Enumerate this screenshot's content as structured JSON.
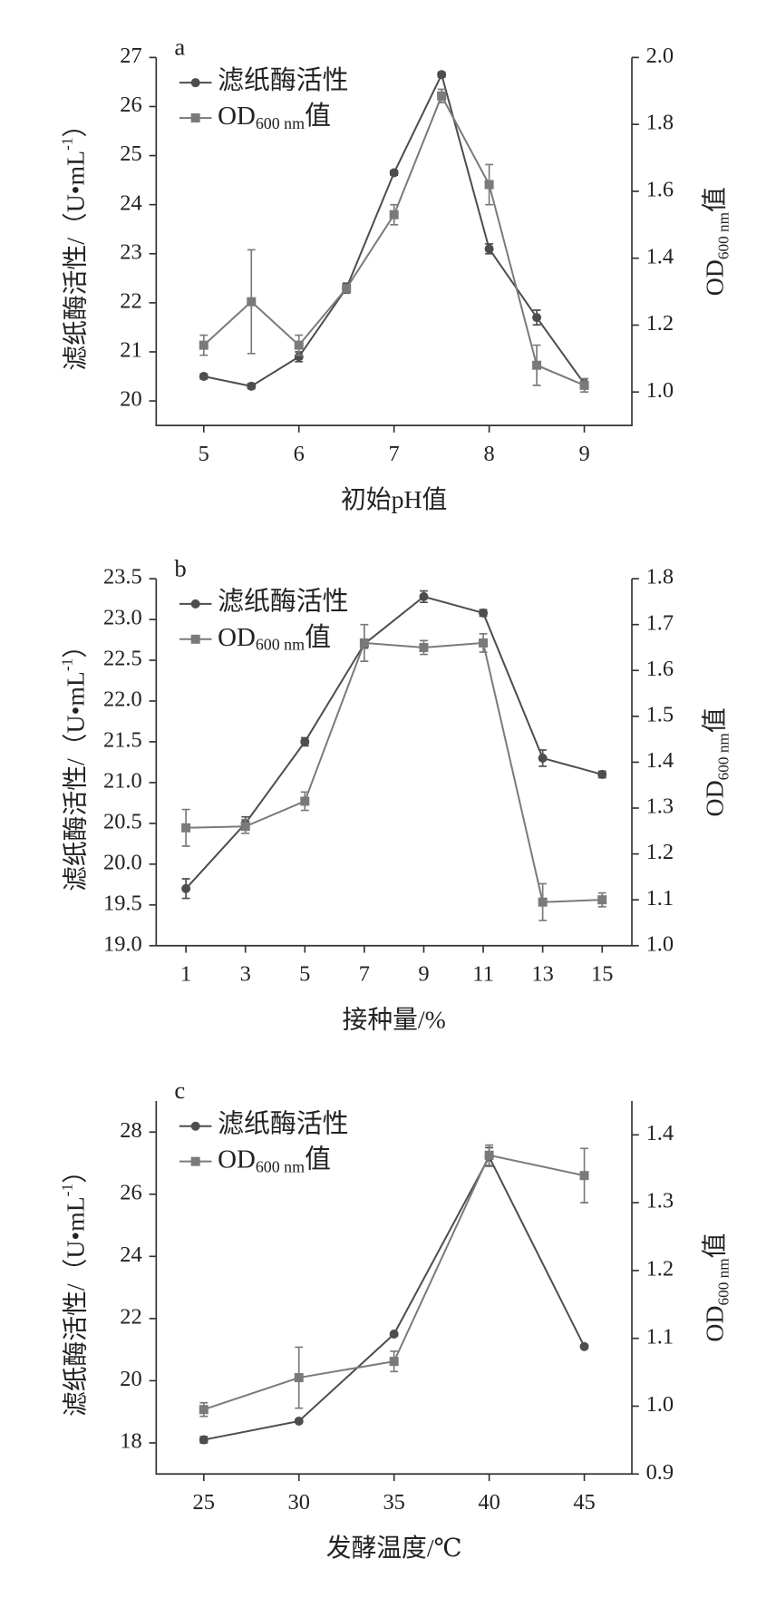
{
  "chart_data": [
    {
      "type": "line",
      "panel": "a",
      "x_label": "初始pH值",
      "y_label": {
        "main": "滤纸酶活性/（U•mL",
        "sup": "-1",
        "suffix": "）"
      },
      "y2_label": {
        "main": "OD",
        "sub": "600 nm",
        "suffix": "值"
      },
      "x": [
        5,
        5.5,
        6,
        6.5,
        7,
        7.5,
        8,
        8.5,
        9
      ],
      "xlim": [
        4.5,
        9.5
      ],
      "xticks": [
        5,
        6,
        7,
        8,
        9
      ],
      "ylim": [
        19.5,
        27
      ],
      "yticks": [
        20,
        21,
        22,
        23,
        24,
        25,
        26,
        27
      ],
      "y2lim": [
        0.9,
        2.0
      ],
      "y2ticks": [
        {
          "value": 1.0,
          "label": "1.0"
        },
        1.2,
        1.4,
        1.6,
        1.8,
        {
          "value": 2.0,
          "label": "2.0"
        }
      ],
      "series": [
        {
          "name": "滤纸酶活性",
          "color": "#4d4d4d",
          "marker": "circle",
          "values": [
            20.5,
            20.3,
            20.9,
            22.3,
            24.65,
            26.65,
            23.1,
            21.7,
            20.35
          ],
          "errors": [
            0.05,
            0.05,
            0.1,
            0.1,
            0.05,
            0.05,
            0.1,
            0.15,
            0.1
          ]
        },
        {
          "name": {
            "main": "OD",
            "sub": "600 nm",
            "suffix": "值"
          },
          "color": "#7a7a7a",
          "marker": "square",
          "axis": "y2",
          "values": [
            1.14,
            1.27,
            1.14,
            1.31,
            1.53,
            1.885,
            1.62,
            1.08,
            1.02
          ],
          "errors": [
            0.03,
            0.155,
            0.03,
            0.01,
            0.03,
            0.02,
            0.06,
            0.06,
            0.02
          ]
        }
      ]
    },
    {
      "type": "line",
      "panel": "b",
      "x_label": "接种量/%",
      "y_label": {
        "main": "滤纸酶活性/（U•mL",
        "sup": "-1",
        "suffix": "）"
      },
      "y2_label": {
        "main": "OD",
        "sub": "600 nm",
        "suffix": "值"
      },
      "x": [
        1,
        3,
        5,
        7,
        9,
        11,
        13,
        15
      ],
      "xlim": [
        0,
        16
      ],
      "xticks": [
        1,
        3,
        5,
        7,
        9,
        11,
        13,
        15
      ],
      "ylim": [
        19,
        23.5
      ],
      "yticks": [
        {
          "value": 19,
          "label": "19.0"
        },
        19.5,
        {
          "value": 20,
          "label": "20.0"
        },
        20.5,
        {
          "value": 21,
          "label": "21.0"
        },
        21.5,
        {
          "value": 22,
          "label": "22.0"
        },
        22.5,
        {
          "value": 23,
          "label": "23.0"
        },
        23.5
      ],
      "y2lim": [
        1.0,
        1.8
      ],
      "y2ticks": [
        {
          "value": 1.0,
          "label": "1.0"
        },
        1.1,
        1.2,
        1.3,
        1.4,
        1.5,
        1.6,
        1.7,
        1.8
      ],
      "series": [
        {
          "name": "滤纸酶活性",
          "color": "#4d4d4d",
          "marker": "circle",
          "values": [
            19.7,
            20.5,
            21.5,
            22.7,
            23.28,
            23.08,
            21.3,
            21.1
          ],
          "errors": [
            0.12,
            0.08,
            0.05,
            0.05,
            0.07,
            0.04,
            0.1,
            0.04
          ]
        },
        {
          "name": {
            "main": "OD",
            "sub": "600 nm",
            "suffix": "值"
          },
          "color": "#7a7a7a",
          "marker": "square",
          "axis": "y2",
          "values": [
            1.257,
            1.26,
            1.315,
            1.66,
            1.65,
            1.66,
            1.095,
            1.1
          ],
          "errors": [
            0.04,
            0.015,
            0.02,
            0.04,
            0.015,
            0.02,
            0.04,
            0.015
          ]
        }
      ]
    },
    {
      "type": "line",
      "panel": "c",
      "x_label": "发酵温度/℃",
      "y_label": {
        "main": "滤纸酶活性/（U•mL",
        "sup": "-1",
        "suffix": "）"
      },
      "y2_label": {
        "main": "OD",
        "sub": "600 nm",
        "suffix": "值"
      },
      "x": [
        25,
        30,
        35,
        40,
        45
      ],
      "xlim": [
        22.5,
        47.5
      ],
      "xticks": [
        25,
        30,
        35,
        40,
        45
      ],
      "ylim": [
        17,
        29
      ],
      "yticks": [
        18,
        20,
        22,
        24,
        26,
        28
      ],
      "y2lim": [
        0.9,
        1.45
      ],
      "y2ticks": [
        0.9,
        {
          "value": 1.0,
          "label": "1.0"
        },
        1.1,
        1.2,
        1.3,
        1.4
      ],
      "series": [
        {
          "name": "滤纸酶活性",
          "color": "#4d4d4d",
          "marker": "circle",
          "values": [
            18.1,
            18.7,
            21.5,
            27.2,
            21.1
          ],
          "errors": [
            0.1,
            0.05,
            0.05,
            0.3,
            0.05
          ]
        },
        {
          "name": {
            "main": "OD",
            "sub": "600 nm",
            "suffix": "值"
          },
          "color": "#7a7a7a",
          "marker": "square",
          "axis": "y2",
          "values": [
            0.995,
            1.042,
            1.066,
            1.37,
            1.34
          ],
          "errors": [
            0.01,
            0.045,
            0.015,
            0.015,
            0.04
          ]
        }
      ]
    }
  ]
}
